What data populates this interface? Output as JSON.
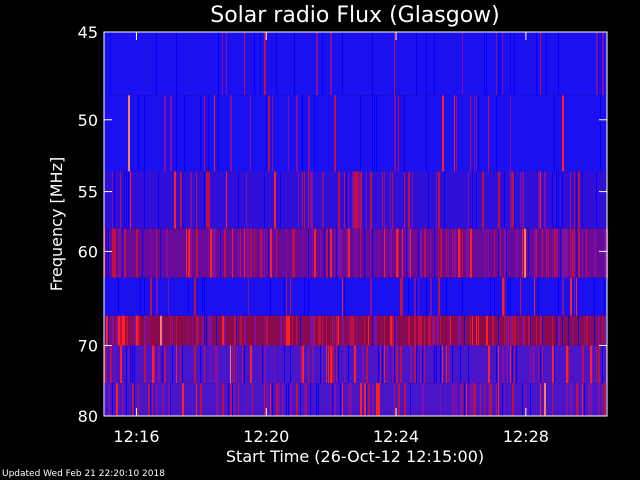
{
  "chart_data": {
    "type": "heatmap",
    "title": "Solar radio Flux (Glasgow)",
    "xlabel": "Start Time (26-Oct-12 12:15:00)",
    "ylabel": "Frequency [MHz]",
    "x_ticks": [
      "12:16",
      "12:20",
      "12:24",
      "12:28"
    ],
    "y_ticks": [
      45,
      50,
      55,
      60,
      70,
      80
    ],
    "x_range": [
      "12:15:00",
      "12:30:30"
    ],
    "y_range": [
      45,
      80
    ],
    "y_scale": "reciprocal",
    "colors": {
      "low": "#0000ff",
      "mid": "#800080",
      "high": "#ff0000",
      "peak": "#ffff80",
      "background": "#000000",
      "foreground": "#ffffff"
    },
    "frequency_bands": [
      {
        "band": [
          45,
          48.5
        ],
        "level": "low"
      },
      {
        "band": [
          48.5,
          53.5
        ],
        "level": "low"
      },
      {
        "band": [
          53.5,
          58
        ],
        "level": "low-mid"
      },
      {
        "band": [
          58,
          62.5
        ],
        "level": "mid-high"
      },
      {
        "band": [
          62.5,
          66.5
        ],
        "level": "low"
      },
      {
        "band": [
          66.5,
          70
        ],
        "level": "high"
      },
      {
        "band": [
          70,
          75
        ],
        "level": "mid"
      },
      {
        "band": [
          75,
          80
        ],
        "level": "mid"
      }
    ]
  },
  "footer": "Updated Wed Feb 21 22:20:10 2018"
}
